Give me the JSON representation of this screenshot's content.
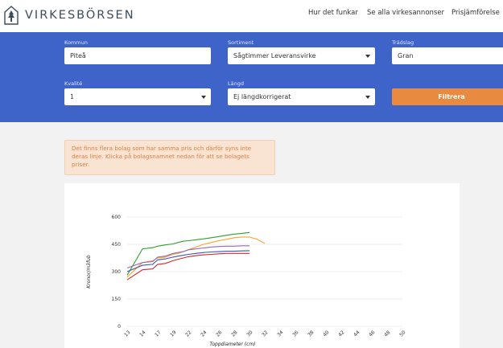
{
  "header": {
    "brand": "VIRKESBÖRSEN",
    "logo_icon": "tree-house-icon",
    "nav": [
      "Hur det funkar",
      "Se alla virkesannonser",
      "Prisjämförelse"
    ]
  },
  "filters": {
    "kommun": {
      "label": "Kommun",
      "value": "Piteå"
    },
    "sortiment": {
      "label": "Sortiment",
      "value": "Sågtimmer Leveransvirke"
    },
    "tradslag": {
      "label": "Trädslag",
      "value": "Gran"
    },
    "kvalite": {
      "label": "Kvalité",
      "value": "1"
    },
    "langd": {
      "label": "Längd",
      "value": "Ej längdkorrigerat"
    },
    "button_label": "Filtrera"
  },
  "notice": {
    "text": "Det finns flera bolag som har samma pris och därför syns inte deras linje. Klicka på bolagsnamnet nedan för att se bolagets priser."
  },
  "colors": {
    "header_bg": "#ffffff",
    "filter_bg": "#3f64c9",
    "button_bg": "#e88a40",
    "notice_bg": "#f9e3d2",
    "notice_text": "#e0803f"
  },
  "chart_data": {
    "type": "line",
    "xlabel": "Toppdiameter (cm)",
    "ylabel": "Kronor/m3fub",
    "x_ticks": [
      "13",
      "14",
      "17",
      "19",
      "22",
      "24",
      "26",
      "28",
      "30",
      "32",
      "34",
      "36",
      "38",
      "40",
      "42",
      "44",
      "46",
      "48",
      "50"
    ],
    "y_ticks": [
      0,
      150,
      300,
      450,
      600
    ],
    "ylim": [
      0,
      600
    ],
    "grid": true,
    "series": [
      {
        "color": "#2ca02c",
        "x": [
          13,
          14,
          16,
          17,
          18,
          19,
          20,
          21,
          22,
          23,
          24,
          25,
          26,
          27,
          28,
          29,
          30
        ],
        "y": [
          280,
          425,
          432,
          440,
          447,
          452,
          460,
          467,
          470,
          475,
          480,
          486,
          493,
          500,
          506,
          510,
          515
        ]
      },
      {
        "color": "#ff9f2a",
        "x": [
          13,
          14,
          16,
          17,
          18,
          19,
          20,
          21,
          22,
          23,
          24,
          25,
          26,
          27,
          28,
          29,
          30,
          31,
          32
        ],
        "y": [
          270,
          350,
          360,
          375,
          380,
          395,
          400,
          410,
          420,
          435,
          450,
          460,
          470,
          478,
          486,
          490,
          490,
          478,
          455
        ]
      },
      {
        "color": "#9467bd",
        "x": [
          13,
          14,
          16,
          17,
          18,
          19,
          20,
          21,
          22,
          23,
          24,
          25,
          26,
          27,
          28,
          29,
          30
        ],
        "y": [
          320,
          350,
          355,
          380,
          385,
          400,
          405,
          410,
          420,
          425,
          430,
          435,
          438,
          440,
          440,
          442,
          442
        ]
      },
      {
        "color": "#3a55b4",
        "x": [
          13,
          14,
          16,
          17,
          18,
          19,
          20,
          21,
          22,
          23,
          24,
          25,
          26,
          27,
          28,
          29,
          30
        ],
        "y": [
          300,
          335,
          340,
          365,
          370,
          380,
          385,
          390,
          395,
          400,
          405,
          408,
          410,
          412,
          412,
          414,
          415
        ]
      },
      {
        "color": "#d62728",
        "x": [
          13,
          14,
          16,
          17,
          18,
          19,
          20,
          21,
          22,
          23,
          24,
          25,
          26,
          27,
          28,
          29,
          30
        ],
        "y": [
          255,
          310,
          315,
          340,
          345,
          360,
          368,
          375,
          382,
          388,
          392,
          395,
          398,
          400,
          400,
          400,
          400
        ]
      }
    ]
  }
}
